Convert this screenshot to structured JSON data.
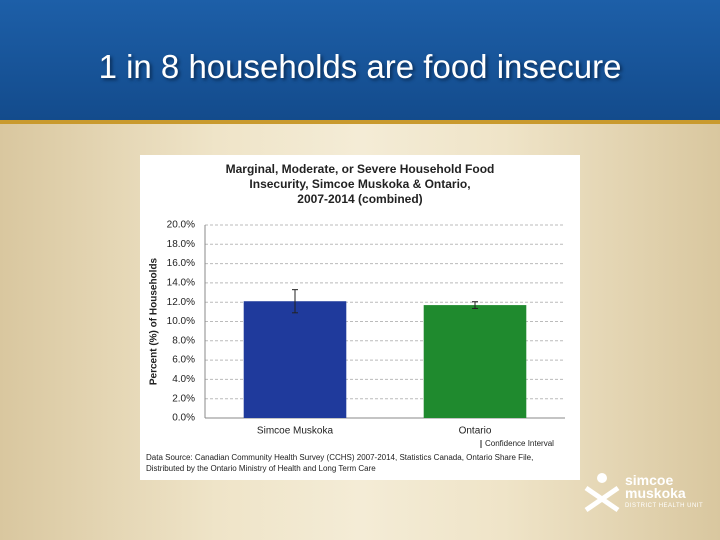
{
  "slide": {
    "title": "1 in 8 households are food insecure"
  },
  "logo": [
    "simcoe",
    "muskoka",
    "DISTRICT HEALTH UNIT"
  ],
  "chart_data": {
    "type": "bar",
    "title": [
      "Marginal, Moderate, or Severe Household Food",
      "Insecurity, Simcoe Muskoka & Ontario,",
      "2007-2014 (combined)"
    ],
    "y_label": "Percent (%) of Households",
    "categories": [
      "Simcoe Muskoka",
      "Ontario"
    ],
    "values": [
      12.1,
      11.7
    ],
    "errors": [
      1.2,
      0.35
    ],
    "colors": [
      "#1f3a9c",
      "#1f8a2e"
    ],
    "error_legend": "Confidence Interval",
    "ylim": [
      0,
      20
    ],
    "yticks": [
      {
        "value": 0,
        "label": "0.0%"
      },
      {
        "value": 2,
        "label": "2.0%"
      },
      {
        "value": 4,
        "label": "4.0%"
      },
      {
        "value": 6,
        "label": "6.0%"
      },
      {
        "value": 8,
        "label": "8.0%"
      },
      {
        "value": 10,
        "label": "10.0%"
      },
      {
        "value": 12,
        "label": "12.0%"
      },
      {
        "value": 14,
        "label": "14.0%"
      },
      {
        "value": 16,
        "label": "16.0%"
      },
      {
        "value": 18,
        "label": "18.0%"
      },
      {
        "value": 20,
        "label": "20.0%"
      }
    ],
    "grid": true,
    "source": [
      "Data Source: Canadian Community Health Survey (CCHS) 2007-2014, Statistics Canada, Ontario Share File,",
      "Distributed by the Ontario Ministry of Health and Long Term Care"
    ]
  }
}
